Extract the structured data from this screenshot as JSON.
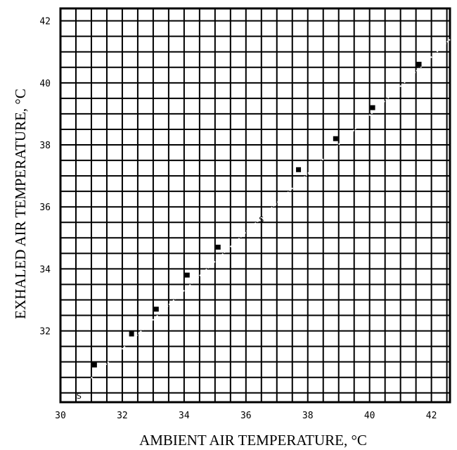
{
  "chart_data": {
    "type": "scatter",
    "title": "",
    "xlabel": "AMBIENT AIR TEMPERATURE, °C",
    "ylabel": "EXHALED AIR TEMPERATURE, °C",
    "xlim": [
      30,
      42.6
    ],
    "ylim": [
      29.7,
      42.4
    ],
    "x_ticks": [
      30,
      32,
      34,
      36,
      38,
      40,
      42
    ],
    "y_ticks": [
      32,
      34,
      36,
      38,
      40,
      42
    ],
    "grid": true,
    "series": [
      {
        "points": [
          {
            "x": 31.1,
            "y": 30.9
          },
          {
            "x": 32.3,
            "y": 31.9
          },
          {
            "x": 33.1,
            "y": 32.7
          },
          {
            "x": 34.1,
            "y": 33.8
          },
          {
            "x": 35.1,
            "y": 34.7
          },
          {
            "x": 37.7,
            "y": 37.2
          },
          {
            "x": 38.9,
            "y": 38.2
          },
          {
            "x": 40.1,
            "y": 39.2
          },
          {
            "x": 41.6,
            "y": 40.6
          }
        ]
      }
    ],
    "annotations": [
      {
        "text": "S",
        "x": 30.6,
        "y": 29.9
      },
      {
        "text": "S",
        "x": 36.5,
        "y": 35.6
      }
    ],
    "fit_line": {
      "from": {
        "x": 30.6,
        "y": 30.1
      },
      "to": {
        "x": 42.6,
        "y": 41.4
      }
    }
  }
}
